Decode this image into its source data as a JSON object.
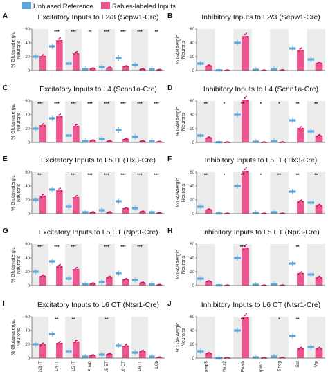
{
  "legend": {
    "unbiased_label": "Unbiased Reference",
    "rabies_label": "Rabies-labeled Inputs"
  },
  "colors": {
    "unbiased": "#5aa6dd",
    "rabies": "#ee5590",
    "rabies_dot": "#c2185b",
    "shade": "#ebebeb"
  },
  "chart_data": [
    {
      "label": "A",
      "type": "bar",
      "title": "Excitatory Inputs to L2/3 (Sepw1-Cre)",
      "ylabel": "% Glutamatergic Neurons",
      "ylim": [
        0,
        60
      ],
      "yticks": [
        0,
        20,
        40,
        60
      ],
      "categories": [
        "L2/3 IT",
        "L4 IT",
        "L5 IT",
        "L5 NP",
        "L5 ET",
        "L6 CT",
        "L6 IT",
        "L6b"
      ],
      "unbiased": [
        20,
        35,
        10,
        2,
        5,
        18,
        8,
        2
      ],
      "rabies": [
        21,
        44,
        25,
        3,
        4,
        6,
        2,
        1
      ],
      "significance": [
        "",
        "***",
        "***",
        "**",
        "***",
        "***",
        "***",
        "**"
      ],
      "show_xticks": false
    },
    {
      "label": "B",
      "type": "bar",
      "title": "Inhibitory Inputs to L2/3 (Sepw1-Cre)",
      "ylabel": "% GABAergic Neurons",
      "ylim": [
        0,
        60
      ],
      "yticks": [
        0,
        20,
        40,
        60
      ],
      "categories": [
        "Lamp5",
        "Meis2",
        "Pvalb",
        "Serpinf1",
        "Sncg",
        "Sst",
        "Vip"
      ],
      "unbiased": [
        10,
        0.3,
        40,
        1,
        2,
        32,
        16
      ],
      "rabies": [
        7,
        0.3,
        50,
        0.3,
        0.5,
        30,
        11
      ],
      "significance": [
        "",
        "",
        "",
        "",
        "",
        "",
        ""
      ],
      "show_xticks": false
    },
    {
      "label": "C",
      "type": "bar",
      "title": "Excitatory Inputs to L4 (Scnn1a-Cre)",
      "ylabel": "% Glutamatergic Neurons",
      "ylim": [
        0,
        60
      ],
      "yticks": [
        0,
        20,
        40,
        60
      ],
      "categories": [
        "L2/3 IT",
        "L4 IT",
        "L5 IT",
        "L5 NP",
        "L5 ET",
        "L6 CT",
        "L6 IT",
        "L6b"
      ],
      "unbiased": [
        20,
        35,
        10,
        2,
        5,
        18,
        8,
        2
      ],
      "rabies": [
        25,
        38,
        24,
        3,
        2,
        5,
        2,
        1
      ],
      "significance": [
        "***",
        "***",
        "***",
        "***",
        "***",
        "***",
        "***",
        "***"
      ],
      "show_xticks": false
    },
    {
      "label": "D",
      "type": "bar",
      "title": "Inhibitory Inputs to L4 (Scnn1a-Cre)",
      "ylabel": "% GABAergic Neurons",
      "ylim": [
        0,
        60
      ],
      "yticks": [
        0,
        20,
        40,
        60
      ],
      "categories": [
        "Lamp5",
        "Meis2",
        "Pvalb",
        "Serpinf1",
        "Sncg",
        "Sst",
        "Vip"
      ],
      "unbiased": [
        10,
        0.3,
        40,
        1,
        2,
        32,
        16
      ],
      "rabies": [
        7,
        0.3,
        62,
        0.3,
        0.3,
        21,
        10
      ],
      "significance": [
        "**",
        "*",
        "**",
        "*",
        "*",
        "**",
        "**"
      ],
      "show_xticks": false
    },
    {
      "label": "E",
      "type": "bar",
      "title": "Excitatory Inputs to L5 IT (Tlx3-Cre)",
      "ylabel": "% Glutamatergic Neurons",
      "ylim": [
        0,
        60
      ],
      "yticks": [
        0,
        20,
        40,
        60
      ],
      "categories": [
        "L2/3 IT",
        "L4 IT",
        "L5 IT",
        "L5 NP",
        "L5 ET",
        "L6 CT",
        "L6 IT",
        "L6b"
      ],
      "unbiased": [
        20,
        35,
        10,
        2,
        5,
        18,
        8,
        2
      ],
      "rabies": [
        26,
        34,
        24,
        2,
        2,
        8,
        3,
        1
      ],
      "significance": [
        "***",
        "",
        "***",
        "***",
        "***",
        "***",
        "***",
        "***"
      ],
      "show_xticks": false
    },
    {
      "label": "F",
      "type": "bar",
      "title": "Inhibitory Inputs to L5 IT (Tlx3-Cre)",
      "ylabel": "% GABAergic Neurons",
      "ylim": [
        0,
        60
      ],
      "yticks": [
        0,
        20,
        40,
        60
      ],
      "categories": [
        "Lamp5",
        "Meis2",
        "Pvalb",
        "Serpinf1",
        "Sncg",
        "Sst",
        "Vip"
      ],
      "unbiased": [
        10,
        0.3,
        40,
        1,
        2,
        32,
        16
      ],
      "rabies": [
        6,
        0.3,
        62,
        0.3,
        0.3,
        18,
        12
      ],
      "significance": [
        "**",
        "*",
        "**",
        "*",
        "**",
        "**",
        "**"
      ],
      "show_xticks": false
    },
    {
      "label": "G",
      "type": "bar",
      "title": "Excitatory Inputs to L5 ET (Npr3-Cre)",
      "ylabel": "% Glutamatergic Neurons",
      "ylim": [
        0,
        60
      ],
      "yticks": [
        0,
        20,
        40,
        60
      ],
      "categories": [
        "L2/3 IT",
        "L4 IT",
        "L5 IT",
        "L5 NP",
        "L5 ET",
        "L6 CT",
        "L6 IT",
        "L6b"
      ],
      "unbiased": [
        20,
        35,
        10,
        2,
        5,
        18,
        8,
        2
      ],
      "rabies": [
        14,
        28,
        24,
        3,
        12,
        9,
        4,
        1
      ],
      "significance": [
        "***",
        "***",
        "***",
        "",
        "***",
        "***",
        "***",
        ""
      ],
      "show_xticks": false
    },
    {
      "label": "H",
      "type": "bar",
      "title": "Inhibitory Inputs to L5 ET (Npr3-Cre)",
      "ylabel": "% GABAergic Neurons",
      "ylim": [
        0,
        60
      ],
      "yticks": [
        0,
        20,
        40,
        60
      ],
      "categories": [
        "Lamp5",
        "Meis2",
        "Pvalb",
        "Serpinf1",
        "Sncg",
        "Sst",
        "Vip"
      ],
      "unbiased": [
        10,
        0.3,
        40,
        1,
        2,
        32,
        16
      ],
      "rabies": [
        6,
        0.3,
        55,
        0.3,
        0.3,
        18,
        12
      ],
      "significance": [
        "",
        "",
        "***",
        "",
        "",
        "**",
        ""
      ],
      "show_xticks": false
    },
    {
      "label": "I",
      "type": "bar",
      "title": "Excitatory Inputs to L6 CT (Ntsr1-Cre)",
      "ylabel": "% Glutamatergic Neurons",
      "ylim": [
        0,
        60
      ],
      "yticks": [
        0,
        20,
        40,
        60
      ],
      "categories": [
        "L2/3 IT",
        "L4 IT",
        "L5 IT",
        "L5 NP",
        "L5 ET",
        "L6 CT",
        "L6 IT",
        "L6b"
      ],
      "unbiased": [
        20,
        35,
        10,
        2,
        5,
        18,
        8,
        2
      ],
      "rabies": [
        20,
        22,
        24,
        4,
        6,
        18,
        10,
        1
      ],
      "significance": [
        "",
        "**",
        "**",
        "",
        "**",
        "",
        "",
        ""
      ],
      "show_xticks": true
    },
    {
      "label": "J",
      "type": "bar",
      "title": "Inhibitory Inputs to L6 CT (Ntsr1-Cre)",
      "ylabel": "% GABAergic Neurons",
      "ylim": [
        0,
        60
      ],
      "yticks": [
        0,
        20,
        40,
        60
      ],
      "categories": [
        "Lamp5",
        "Meis2",
        "Pvalb",
        "Serpinf1",
        "Sncg",
        "Sst",
        "Vip"
      ],
      "unbiased": [
        10,
        0.3,
        40,
        1,
        2,
        32,
        16
      ],
      "rabies": [
        7,
        0.3,
        60,
        0.3,
        0.5,
        14,
        14
      ],
      "significance": [
        "",
        "",
        "**",
        "",
        "*",
        "**",
        ""
      ],
      "show_xticks": true
    }
  ]
}
